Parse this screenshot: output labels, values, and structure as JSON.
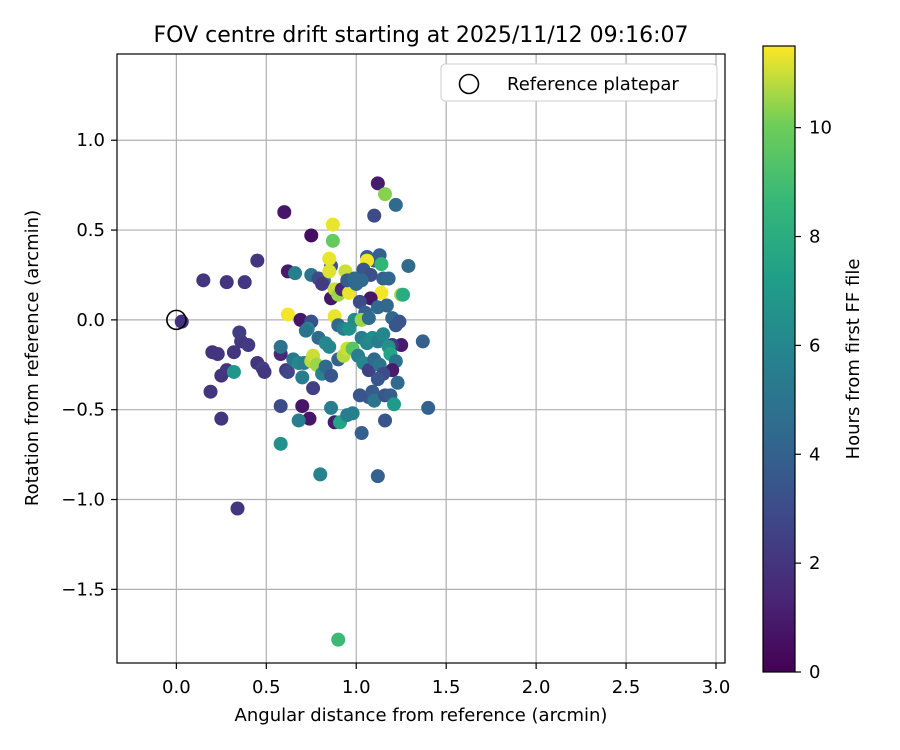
{
  "chart_data": {
    "type": "scatter",
    "title": "FOV centre drift starting at 2025/11/12 09:16:07",
    "xlabel": "Angular distance from reference (arcmin)",
    "ylabel": "Rotation from reference (arcmin)",
    "xlim": [
      -0.33,
      3.05
    ],
    "ylim": [
      -1.91,
      1.48
    ],
    "x_ticks": [
      0.0,
      0.5,
      1.0,
      1.5,
      2.0,
      2.5,
      3.0
    ],
    "x_tick_labels": [
      "0.0",
      "0.5",
      "1.0",
      "1.5",
      "2.0",
      "2.5",
      "3.0"
    ],
    "y_ticks": [
      1.0,
      0.5,
      0.0,
      -0.5,
      -1.0,
      -1.5
    ],
    "y_tick_labels": [
      "1.0",
      "0.5",
      "0.0",
      "−0.5",
      "−1.0",
      "−1.5"
    ],
    "grid": true,
    "legend": {
      "position": "top-right",
      "entries": [
        "Reference platepar"
      ]
    },
    "reference_point": {
      "x": 0.0,
      "y": 0.0,
      "marker": "open-circle"
    },
    "colorbar": {
      "label": "Hours from first FF file",
      "colormap": "viridis",
      "min": 0,
      "max": 11.5,
      "ticks": [
        0,
        2,
        4,
        6,
        8,
        10
      ],
      "tick_labels": [
        "0",
        "2",
        "4",
        "6",
        "8",
        "10"
      ]
    },
    "points": [
      [
        0.03,
        -0.01,
        1.8
      ],
      [
        0.15,
        0.22,
        2.0
      ],
      [
        0.28,
        0.21,
        2.0
      ],
      [
        0.38,
        0.21,
        2.1
      ],
      [
        0.45,
        0.33,
        2.0
      ],
      [
        0.2,
        -0.18,
        1.9
      ],
      [
        0.23,
        -0.19,
        2.0
      ],
      [
        0.19,
        -0.4,
        2.0
      ],
      [
        0.25,
        -0.31,
        1.9
      ],
      [
        0.32,
        -0.18,
        2.0
      ],
      [
        0.36,
        -0.12,
        2.1
      ],
      [
        0.35,
        -0.07,
        2.3
      ],
      [
        0.4,
        -0.14,
        2.2
      ],
      [
        0.45,
        -0.24,
        2.0
      ],
      [
        0.48,
        -0.27,
        2.5
      ],
      [
        0.49,
        -0.29,
        2.0
      ],
      [
        0.25,
        -0.55,
        2.0
      ],
      [
        0.34,
        -1.05,
        2.0
      ],
      [
        0.28,
        -0.28,
        2.1
      ],
      [
        0.32,
        -0.29,
        6.8
      ],
      [
        0.6,
        0.6,
        0.8
      ],
      [
        0.62,
        0.27,
        0.9
      ],
      [
        0.66,
        0.26,
        5.6
      ],
      [
        0.75,
        0.47,
        0.5
      ],
      [
        0.75,
        0.25,
        5.0
      ],
      [
        0.82,
        0.22,
        4.5
      ],
      [
        0.79,
        0.23,
        3.0
      ],
      [
        0.81,
        0.2,
        2.2
      ],
      [
        0.86,
        0.3,
        3.5
      ],
      [
        0.87,
        0.53,
        11.3
      ],
      [
        0.85,
        0.34,
        11.3
      ],
      [
        0.87,
        0.44,
        9.8
      ],
      [
        0.85,
        0.27,
        11.2
      ],
      [
        0.86,
        0.12,
        0.8
      ],
      [
        0.88,
        0.17,
        11.0
      ],
      [
        0.9,
        0.14,
        10.5
      ],
      [
        0.92,
        0.17,
        1.5
      ],
      [
        0.94,
        0.27,
        11.0
      ],
      [
        0.96,
        0.15,
        11.3
      ],
      [
        0.95,
        0.22,
        3.7
      ],
      [
        1.12,
        0.76,
        1.0
      ],
      [
        1.1,
        0.58,
        3.0
      ],
      [
        1.22,
        0.64,
        4.5
      ],
      [
        1.16,
        0.7,
        10.3
      ],
      [
        1.06,
        0.35,
        3.8
      ],
      [
        1.1,
        0.33,
        4.0
      ],
      [
        1.13,
        0.36,
        4.0
      ],
      [
        1.14,
        0.31,
        8.5
      ],
      [
        1.06,
        0.33,
        11.4
      ],
      [
        1.04,
        0.28,
        3.5
      ],
      [
        1.08,
        0.25,
        3.2
      ],
      [
        1.03,
        0.22,
        4.5
      ],
      [
        1.0,
        0.2,
        4.5
      ],
      [
        0.99,
        0.23,
        4.5
      ],
      [
        1.15,
        0.23,
        4.0
      ],
      [
        1.18,
        0.23,
        4.2
      ],
      [
        1.25,
        0.14,
        10.5
      ],
      [
        1.26,
        0.14,
        8.0
      ],
      [
        1.29,
        0.3,
        4.5
      ],
      [
        1.14,
        0.15,
        11.4
      ],
      [
        1.08,
        0.12,
        0.8
      ],
      [
        1.02,
        0.1,
        3.0
      ],
      [
        1.05,
        0.04,
        4.0
      ],
      [
        1.12,
        0.07,
        4.5
      ],
      [
        1.17,
        0.08,
        4.3
      ],
      [
        1.2,
        0.01,
        4.3
      ],
      [
        1.22,
        -0.03,
        3.5
      ],
      [
        1.24,
        -0.01,
        3.5
      ],
      [
        1.25,
        -0.14,
        1.0
      ],
      [
        1.2,
        -0.14,
        2.0
      ],
      [
        0.62,
        0.03,
        11.4
      ],
      [
        0.69,
        0.0,
        0.8
      ],
      [
        0.75,
        -0.01,
        3.2
      ],
      [
        0.73,
        -0.05,
        6.0
      ],
      [
        0.72,
        -0.06,
        5.0
      ],
      [
        0.79,
        -0.1,
        4.5
      ],
      [
        0.83,
        -0.13,
        6.0
      ],
      [
        0.85,
        -0.15,
        6.0
      ],
      [
        0.88,
        0.02,
        11.3
      ],
      [
        0.9,
        -0.03,
        4.5
      ],
      [
        0.93,
        -0.05,
        5.5
      ],
      [
        0.96,
        -0.05,
        6.5
      ],
      [
        0.99,
        0.0,
        6.2
      ],
      [
        1.03,
        0.0,
        10.5
      ],
      [
        1.07,
        0.01,
        4.5
      ],
      [
        1.03,
        -0.1,
        5.5
      ],
      [
        1.06,
        -0.13,
        6.0
      ],
      [
        1.09,
        -0.1,
        6.2
      ],
      [
        1.12,
        -0.12,
        5.5
      ],
      [
        1.15,
        -0.08,
        6.0
      ],
      [
        1.18,
        -0.15,
        6.5
      ],
      [
        1.19,
        -0.19,
        7.5
      ],
      [
        1.22,
        -0.23,
        5.0
      ],
      [
        1.2,
        -0.28,
        1.0
      ],
      [
        1.23,
        -0.35,
        4.5
      ],
      [
        0.58,
        -0.19,
        1.5
      ],
      [
        0.58,
        -0.15,
        5.0
      ],
      [
        0.61,
        -0.28,
        2.2
      ],
      [
        0.62,
        -0.29,
        2.8
      ],
      [
        0.65,
        -0.22,
        5.2
      ],
      [
        0.68,
        -0.24,
        6.0
      ],
      [
        0.71,
        -0.24,
        5.5
      ],
      [
        0.7,
        -0.32,
        5.5
      ],
      [
        0.75,
        -0.23,
        10.8
      ],
      [
        0.76,
        -0.2,
        11.0
      ],
      [
        0.78,
        -0.25,
        10.5
      ],
      [
        0.81,
        -0.3,
        5.8
      ],
      [
        0.83,
        -0.26,
        4.5
      ],
      [
        0.86,
        -0.31,
        3.5
      ],
      [
        0.9,
        -0.22,
        4.0
      ],
      [
        0.93,
        -0.2,
        10.8
      ],
      [
        0.95,
        -0.16,
        11.0
      ],
      [
        0.98,
        -0.16,
        9.5
      ],
      [
        1.01,
        -0.2,
        5.5
      ],
      [
        1.04,
        -0.24,
        6.0
      ],
      [
        1.07,
        -0.28,
        2.5
      ],
      [
        1.1,
        -0.22,
        4.5
      ],
      [
        1.13,
        -0.25,
        5.0
      ],
      [
        1.15,
        -0.3,
        3.0
      ],
      [
        1.12,
        -0.33,
        3.5
      ],
      [
        0.58,
        -0.48,
        3.0
      ],
      [
        0.76,
        -0.38,
        2.5
      ],
      [
        0.7,
        -0.48,
        0.8
      ],
      [
        0.74,
        -0.55,
        0.8
      ],
      [
        0.86,
        -0.49,
        5.5
      ],
      [
        0.88,
        -0.57,
        1.0
      ],
      [
        0.91,
        -0.57,
        7.5
      ],
      [
        0.95,
        -0.53,
        5.5
      ],
      [
        0.98,
        -0.52,
        5.6
      ],
      [
        1.02,
        -0.42,
        3.5
      ],
      [
        1.07,
        -0.43,
        3.5
      ],
      [
        1.09,
        -0.4,
        3.8
      ],
      [
        1.1,
        -0.45,
        5.0
      ],
      [
        1.16,
        -0.42,
        3.5
      ],
      [
        1.19,
        -0.42,
        3.8
      ],
      [
        1.16,
        -0.56,
        3.5
      ],
      [
        1.21,
        -0.47,
        7.0
      ],
      [
        1.03,
        -0.63,
        4.0
      ],
      [
        0.68,
        -0.56,
        5.5
      ],
      [
        0.58,
        -0.69,
        6.5
      ],
      [
        0.8,
        -0.86,
        5.8
      ],
      [
        1.12,
        -0.87,
        4.0
      ],
      [
        1.37,
        -0.12,
        4.0
      ],
      [
        1.4,
        -0.49,
        4.0
      ],
      [
        0.9,
        -1.78,
        8.8
      ]
    ]
  }
}
